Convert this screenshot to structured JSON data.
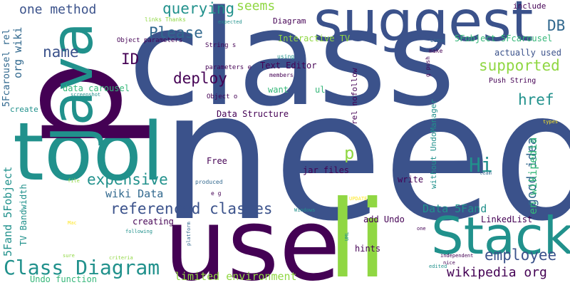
{
  "colors": {
    "background": "#ffffff",
    "purple": "#440154",
    "indigo": "#3b528b",
    "blue": "#31688e",
    "teal": "#21918c",
    "green": "#35b779",
    "lime": "#90d743",
    "yellow": "#fde725"
  },
  "words": {
    "need": "need",
    "class": "class",
    "p_big": "p",
    "suggest": "suggest",
    "use": "use",
    "tool": "tool",
    "li": "li",
    "java": "Java",
    "stack": "Stack",
    "class_diagram": "Class Diagram",
    "referenced_classes": "referenced classes",
    "expensive": "expensive",
    "deploy": "deploy",
    "querying": "querying",
    "one_method": "one method",
    "please": "Please",
    "name": "name",
    "supported": "supported",
    "employee": "employee",
    "wiki_data": "wiki Data",
    "good_idea": "good idea",
    "href": "href",
    "wikipedia_org": "wikipedia org",
    "limited_environment": "limited environment",
    "hi": "Hi",
    "seems": "seems",
    "db": "DB",
    "id": "ID",
    "p_small": "p",
    "org_wiki": "org wiki",
    "five_fand_5fobject": "5Fand 5Fobject",
    "five_fcarousel_rel": "5Fcarousel rel",
    "data_5fand": "Data 5Fand",
    "en_wikipedia": "en wikipedia",
    "interactive_tv": "Interactive TV",
    "text_editor": "Text Editor",
    "data_structure": "Data Structure",
    "data_carousel": "data carousel",
    "jar_files": "jar files",
    "actually_used": "actually used",
    "push_string": "Push String",
    "five_fobject_5fcarousel": "5Fobject 5Fcarousel",
    "linked_list": "LinkedList",
    "add_undo": "add Undo",
    "hints": "hints",
    "creating": "creating",
    "undo_function": "Undo function",
    "tv_bandwidth": "TV Bandwidth",
    "free": "Free",
    "write": "write",
    "want": "want",
    "ul": "ul",
    "rel_nofollow": "rel nofollow",
    "without_undomanager": "without UndoManager",
    "create": "create",
    "include": "include",
    "diagram": "Diagram",
    "object_parameters": "Object parameters",
    "string_s": "String s",
    "parameters_e": "parameters e",
    "object_o": "Object o",
    "members": "members",
    "using": "using",
    "links_thanks": "links Thanks",
    "expected": "expected",
    "screenshot": "screenshot",
    "make": "make",
    "g_push": "g push",
    "linux": "Linux",
    "types": "types",
    "team": "team",
    "produced": "produced",
    "e_g": "e g",
    "file": "file",
    "windows": "Windows",
    "update": "UPDATE",
    "mac": "Mac",
    "platform": "platform",
    "following": "following",
    "sure": "sure",
    "criteria": "criteria",
    "uml": "UML",
    "independent": "independent",
    "nice": "nice",
    "edited": "edited",
    "one": "one"
  }
}
